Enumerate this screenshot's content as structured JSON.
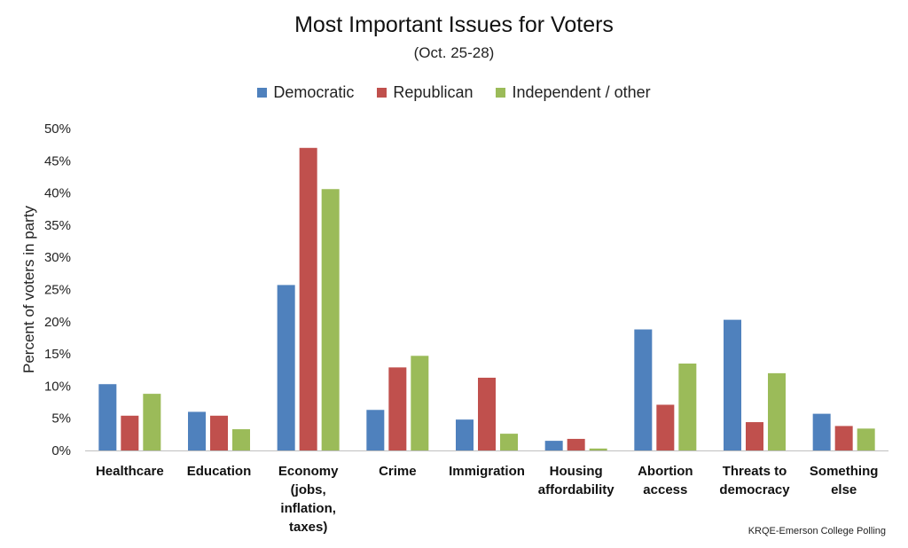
{
  "chart_data": {
    "type": "bar",
    "title": "Most Important Issues for Voters",
    "subtitle": "(Oct. 25-28)",
    "ylabel": "Percent of voters in party",
    "ylim": [
      0,
      50
    ],
    "yticks": [
      "0%",
      "5%",
      "10%",
      "15%",
      "20%",
      "25%",
      "30%",
      "35%",
      "40%",
      "45%",
      "50%"
    ],
    "categories": [
      [
        "Healthcare"
      ],
      [
        "Education"
      ],
      [
        "Economy",
        "(jobs,",
        "inflation,",
        "taxes)"
      ],
      [
        "Crime"
      ],
      [
        "Immigration"
      ],
      [
        "Housing",
        "affordability"
      ],
      [
        "Abortion",
        "access"
      ],
      [
        "Threats to",
        "democracy"
      ],
      [
        "Something",
        "else"
      ]
    ],
    "series": [
      {
        "name": "Democratic",
        "color": "#4f81bd",
        "values": [
          10.3,
          6.0,
          25.7,
          6.3,
          4.8,
          1.5,
          18.8,
          20.3,
          5.7
        ]
      },
      {
        "name": "Republican",
        "color": "#c0504d",
        "values": [
          5.4,
          5.4,
          47.0,
          12.9,
          11.3,
          1.8,
          7.1,
          4.4,
          3.8
        ]
      },
      {
        "name": "Independent / other",
        "color": "#9bbb59",
        "values": [
          8.8,
          3.3,
          40.6,
          14.7,
          2.6,
          0.3,
          13.5,
          12.0,
          3.4
        ]
      }
    ],
    "legend_position": "top-center",
    "grid": false
  },
  "source": "KRQE-Emerson College Polling"
}
